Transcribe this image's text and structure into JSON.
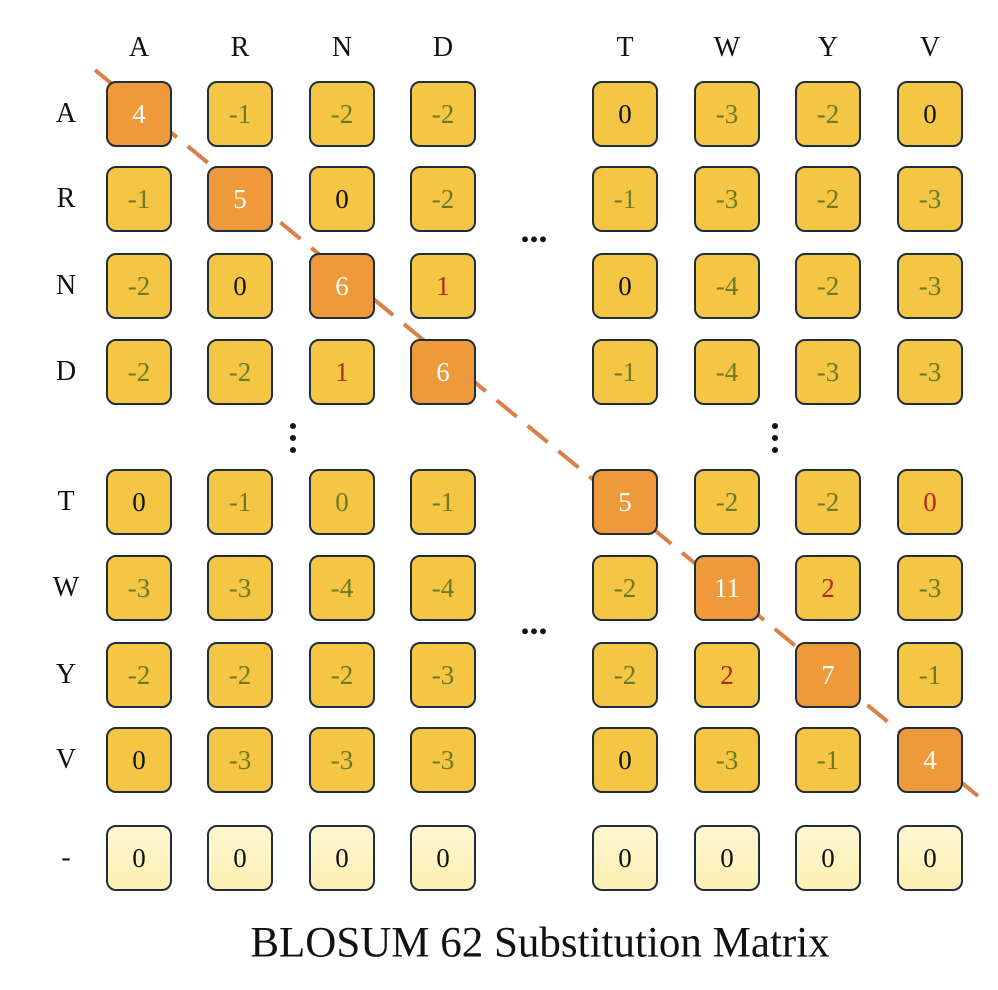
{
  "title": "BLOSUM 62 Substitution Matrix",
  "columns": [
    "A",
    "R",
    "N",
    "D",
    "T",
    "W",
    "Y",
    "V"
  ],
  "rows": [
    "A",
    "R",
    "N",
    "D",
    "T",
    "W",
    "Y",
    "V",
    "-"
  ],
  "values": [
    [
      4,
      -1,
      -2,
      -2,
      0,
      -3,
      -2,
      0
    ],
    [
      -1,
      5,
      0,
      -2,
      -1,
      -3,
      -2,
      -3
    ],
    [
      -2,
      0,
      6,
      1,
      0,
      -4,
      -2,
      -3
    ],
    [
      -2,
      -2,
      1,
      6,
      -1,
      -4,
      -3,
      -3
    ],
    [
      0,
      -1,
      0,
      -1,
      5,
      -2,
      -2,
      0
    ],
    [
      -3,
      -3,
      -4,
      -4,
      -2,
      11,
      2,
      -3
    ],
    [
      -2,
      -2,
      -2,
      -3,
      -2,
      2,
      7,
      -1
    ],
    [
      0,
      -3,
      -3,
      -3,
      0,
      -3,
      -1,
      4
    ],
    [
      0,
      0,
      0,
      0,
      0,
      0,
      0,
      0
    ]
  ],
  "ellipsis": "...",
  "colors": {
    "cell_fill": "#f5c544",
    "diagonal_fill": "#ef9a3a",
    "gap_fill": "#fdf0b4",
    "diagonal_line": "#d9804a",
    "negative_text": "#6b7a24",
    "positive_text": "#b0281c"
  }
}
